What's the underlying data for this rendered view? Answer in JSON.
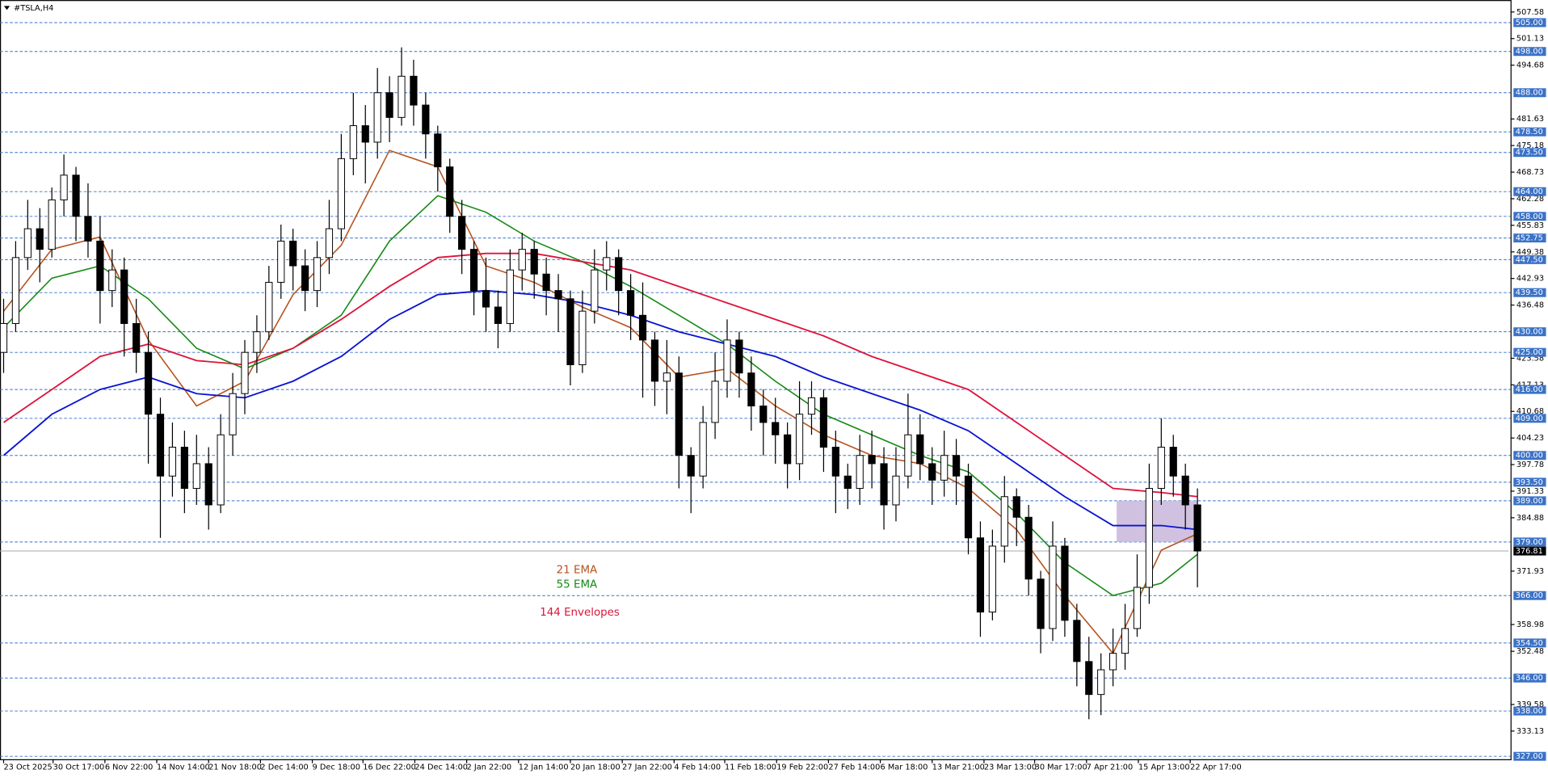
{
  "chart_data": {
    "type": "candlestick",
    "title": "#TSLA,H4",
    "up_color": "#ffffff",
    "down_color": "#000000",
    "xlim": [
      -0.3,
      124.8
    ],
    "xticks": [
      {
        "value": 0,
        "label": "23 Oct 2025"
      },
      {
        "value": 4.1,
        "label": "30 Oct 17:00"
      },
      {
        "value": 8.4,
        "label": "6 Nov 22:00"
      },
      {
        "value": 12.7,
        "label": "14 Nov 14:00"
      },
      {
        "value": 17.0,
        "label": "21 Nov 18:00"
      },
      {
        "value": 21.3,
        "label": "2 Dec 14:00"
      },
      {
        "value": 25.6,
        "label": "9 Dec 18:00"
      },
      {
        "value": 29.8,
        "label": "16 Dec 22:00"
      },
      {
        "value": 34.1,
        "label": "24 Dec 14:00"
      },
      {
        "value": 38.4,
        "label": "2 Jan 22:00"
      },
      {
        "value": 42.7,
        "label": "12 Jan 14:00"
      },
      {
        "value": 47.0,
        "label": "20 Jan 18:00"
      },
      {
        "value": 51.3,
        "label": "27 Jan 22:00"
      },
      {
        "value": 55.6,
        "label": "4 Feb 14:00"
      },
      {
        "value": 59.8,
        "label": "11 Feb 18:00"
      },
      {
        "value": 64.1,
        "label": "19 Feb 22:00"
      },
      {
        "value": 68.4,
        "label": "27 Feb 14:00"
      },
      {
        "value": 72.7,
        "label": "6 Mar 18:00"
      },
      {
        "value": 77.0,
        "label": "13 Mar 21:00"
      },
      {
        "value": 81.3,
        "label": "23 Mar 13:00"
      },
      {
        "value": 85.5,
        "label": "30 Mar 17:00"
      },
      {
        "value": 89.8,
        "label": "7 Apr 21:00"
      },
      {
        "value": 94.1,
        "label": "15 Apr 13:00"
      },
      {
        "value": 98.4,
        "label": "22 Apr 17:00"
      }
    ],
    "ylim": [
      326.3,
      510
    ],
    "yticks": [
      507.58,
      501.13,
      494.68,
      481.63,
      475.18,
      468.73,
      462.28,
      455.83,
      449.38,
      442.93,
      436.48,
      423.58,
      417.13,
      410.68,
      404.23,
      397.78,
      391.33,
      384.88,
      371.93,
      358.98,
      352.48,
      339.58,
      333.13
    ],
    "level_color": "#3b72c8",
    "levels": [
      {
        "value": 505,
        "label": "505.00"
      },
      {
        "value": 498,
        "label": "498.00"
      },
      {
        "value": 488,
        "label": "488.00"
      },
      {
        "value": 478.5,
        "label": "478.50"
      },
      {
        "value": 473.5,
        "label": "473.50"
      },
      {
        "value": 464,
        "label": "464.00"
      },
      {
        "value": 458,
        "label": "458.00"
      },
      {
        "value": 452.75,
        "label": "452.75"
      },
      {
        "value": 447.5,
        "label": "447.50"
      },
      {
        "value": 439.5,
        "label": "439.50"
      },
      {
        "value": 430,
        "label": "430.00"
      },
      {
        "value": 425,
        "label": "425.00"
      },
      {
        "value": 416,
        "label": "416.00"
      },
      {
        "value": 409,
        "label": "409.00"
      },
      {
        "value": 400,
        "label": "400.00"
      },
      {
        "value": 393.5,
        "label": "393.50"
      },
      {
        "value": 389,
        "label": "389.00"
      },
      {
        "value": 379,
        "label": "379.00"
      },
      {
        "value": 366,
        "label": "366.00"
      },
      {
        "value": 354.5,
        "label": "354.50"
      },
      {
        "value": 346,
        "label": "346.00"
      },
      {
        "value": 338,
        "label": "338.00"
      },
      {
        "value": 327,
        "label": "327.00"
      }
    ],
    "last_price": 376.81,
    "zone": {
      "x": [
        92.3,
        99
      ],
      "y": [
        379,
        389
      ],
      "color": "#c9b6da"
    },
    "ohlc": [
      [
        425,
        438,
        420,
        432
      ],
      [
        432,
        452,
        430,
        448
      ],
      [
        448,
        462,
        445,
        455
      ],
      [
        455,
        460,
        442,
        450
      ],
      [
        450,
        465,
        448,
        462
      ],
      [
        462,
        473,
        458,
        468
      ],
      [
        468,
        470,
        452,
        458
      ],
      [
        458,
        466,
        448,
        452
      ],
      [
        452,
        458,
        432,
        440
      ],
      [
        440,
        450,
        436,
        445
      ],
      [
        445,
        448,
        424,
        432
      ],
      [
        432,
        438,
        420,
        425
      ],
      [
        425,
        430,
        398,
        410
      ],
      [
        410,
        414,
        380,
        395
      ],
      [
        395,
        408,
        390,
        402
      ],
      [
        402,
        406,
        386,
        392
      ],
      [
        392,
        405,
        388,
        398
      ],
      [
        398,
        402,
        382,
        388
      ],
      [
        388,
        410,
        386,
        405
      ],
      [
        405,
        420,
        400,
        415
      ],
      [
        415,
        428,
        410,
        425
      ],
      [
        425,
        434,
        420,
        430
      ],
      [
        430,
        446,
        428,
        442
      ],
      [
        442,
        456,
        438,
        452
      ],
      [
        452,
        455,
        440,
        446
      ],
      [
        446,
        450,
        435,
        440
      ],
      [
        440,
        452,
        436,
        448
      ],
      [
        448,
        462,
        444,
        455
      ],
      [
        455,
        478,
        452,
        472
      ],
      [
        472,
        488,
        468,
        480
      ],
      [
        480,
        485,
        466,
        476
      ],
      [
        476,
        494,
        472,
        488
      ],
      [
        488,
        492,
        476,
        482
      ],
      [
        482,
        499,
        480,
        492
      ],
      [
        492,
        496,
        480,
        485
      ],
      [
        485,
        488,
        472,
        478
      ],
      [
        478,
        480,
        464,
        470
      ],
      [
        470,
        472,
        454,
        458
      ],
      [
        458,
        462,
        444,
        450
      ],
      [
        450,
        452,
        434,
        440
      ],
      [
        440,
        448,
        430,
        436
      ],
      [
        436,
        440,
        426,
        432
      ],
      [
        432,
        450,
        430,
        445
      ],
      [
        445,
        454,
        440,
        450
      ],
      [
        450,
        452,
        438,
        444
      ],
      [
        444,
        448,
        434,
        440
      ],
      [
        440,
        444,
        430,
        438
      ],
      [
        438,
        440,
        417,
        422
      ],
      [
        422,
        440,
        420,
        435
      ],
      [
        435,
        450,
        432,
        445
      ],
      [
        445,
        452,
        440,
        448
      ],
      [
        448,
        450,
        434,
        440
      ],
      [
        440,
        444,
        428,
        434
      ],
      [
        434,
        442,
        414,
        428
      ],
      [
        428,
        430,
        412,
        418
      ],
      [
        418,
        428,
        410,
        420
      ],
      [
        420,
        424,
        392,
        400
      ],
      [
        400,
        402,
        386,
        395
      ],
      [
        395,
        412,
        392,
        408
      ],
      [
        408,
        425,
        404,
        418
      ],
      [
        418,
        433,
        414,
        428
      ],
      [
        428,
        430,
        414,
        420
      ],
      [
        420,
        424,
        406,
        412
      ],
      [
        412,
        416,
        400,
        408
      ],
      [
        408,
        414,
        398,
        405
      ],
      [
        405,
        408,
        392,
        398
      ],
      [
        398,
        418,
        394,
        410
      ],
      [
        410,
        418,
        405,
        414
      ],
      [
        414,
        416,
        396,
        402
      ],
      [
        402,
        406,
        386,
        395
      ],
      [
        395,
        398,
        387,
        392
      ],
      [
        392,
        405,
        388,
        400
      ],
      [
        400,
        406,
        392,
        398
      ],
      [
        398,
        402,
        382,
        388
      ],
      [
        388,
        402,
        384,
        395
      ],
      [
        395,
        415,
        392,
        405
      ],
      [
        405,
        410,
        394,
        398
      ],
      [
        398,
        402,
        388,
        394
      ],
      [
        394,
        406,
        390,
        400
      ],
      [
        400,
        404,
        388,
        395
      ],
      [
        395,
        398,
        376,
        380
      ],
      [
        380,
        384,
        356,
        362
      ],
      [
        362,
        382,
        360,
        378
      ],
      [
        378,
        395,
        374,
        390
      ],
      [
        390,
        392,
        378,
        385
      ],
      [
        385,
        388,
        366,
        370
      ],
      [
        370,
        372,
        352,
        358
      ],
      [
        358,
        384,
        355,
        378
      ],
      [
        378,
        380,
        356,
        360
      ],
      [
        360,
        364,
        344,
        350
      ],
      [
        350,
        356,
        336,
        342
      ],
      [
        342,
        352,
        337,
        348
      ],
      [
        348,
        358,
        344,
        352
      ],
      [
        352,
        364,
        348,
        358
      ],
      [
        358,
        376,
        356,
        368
      ],
      [
        368,
        398,
        364,
        392
      ],
      [
        392,
        409,
        388,
        402
      ],
      [
        402,
        405,
        390,
        395
      ],
      [
        395,
        398,
        382,
        388
      ],
      [
        388,
        392,
        368,
        376.81
      ]
    ],
    "lines": [
      {
        "name": "21 EMA",
        "color": "#b4531f",
        "x": [
          0,
          4,
          8,
          12,
          16,
          20,
          24,
          28,
          32,
          36,
          40,
          44,
          48,
          52,
          56,
          60,
          64,
          68,
          72,
          76,
          80,
          84,
          88,
          92,
          96,
          99
        ],
        "values": [
          435,
          450,
          453,
          428,
          412,
          418,
          439,
          451,
          474,
          470,
          446,
          442,
          436,
          431,
          419,
          421,
          412,
          405,
          400,
          398,
          392,
          382,
          366,
          352,
          377,
          381
        ]
      },
      {
        "name": "55 EMA",
        "color": "#148a14",
        "x": [
          0,
          4,
          8,
          12,
          16,
          20,
          24,
          28,
          32,
          36,
          40,
          44,
          48,
          52,
          56,
          60,
          64,
          68,
          72,
          76,
          80,
          84,
          88,
          92,
          96,
          99
        ],
        "values": [
          431,
          443,
          446,
          438,
          426,
          421,
          426,
          434,
          452,
          463,
          459,
          452,
          447,
          441,
          434,
          427,
          418,
          410,
          405,
          400,
          396,
          386,
          374,
          366,
          369,
          376
        ]
      }
    ],
    "envelopes": {
      "name": "144 Envelopes",
      "color": "#dc143c",
      "upper_color": "#dc143c",
      "lower_color": "#0a14d0",
      "x": [
        0,
        4,
        8,
        12,
        16,
        20,
        24,
        28,
        32,
        36,
        40,
        44,
        48,
        52,
        56,
        60,
        64,
        68,
        72,
        76,
        80,
        84,
        88,
        92,
        96,
        99
      ],
      "upper": [
        408,
        416,
        424,
        427,
        423,
        422,
        426,
        433,
        441,
        448,
        449,
        449,
        447,
        445,
        441,
        437,
        433,
        429,
        424,
        420,
        416,
        408,
        400,
        392,
        391,
        390
      ],
      "lower": [
        400,
        410,
        416,
        419,
        415,
        414,
        418,
        424,
        433,
        439,
        440,
        439,
        437,
        434,
        430,
        427,
        424,
        419,
        415,
        411,
        406,
        398,
        390,
        383,
        383,
        382
      ]
    }
  }
}
